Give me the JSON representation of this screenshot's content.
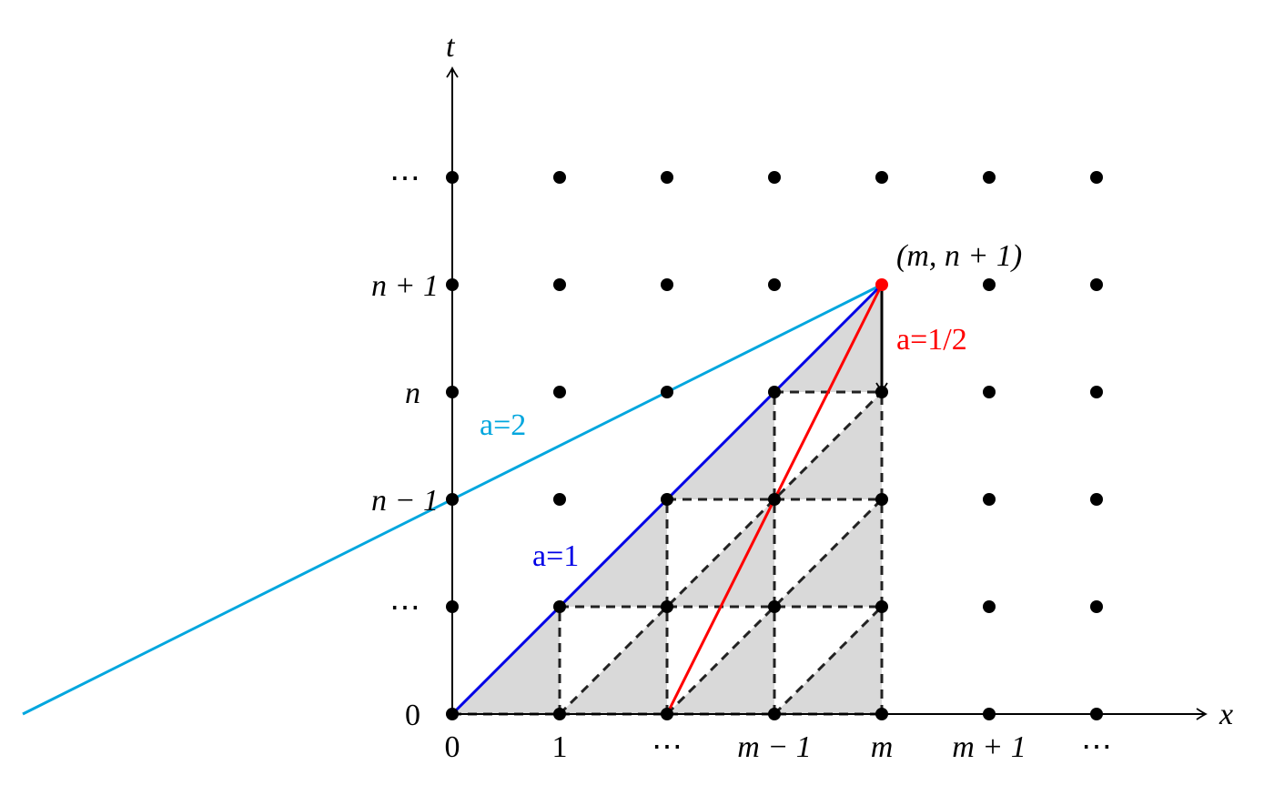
{
  "axes": {
    "x_name": "x",
    "t_name": "t",
    "x_labels": [
      "0",
      "1",
      "⋯",
      "m − 1",
      "m",
      "m + 1",
      "⋯"
    ],
    "t_labels": [
      "0",
      "⋯",
      "n − 1",
      "n",
      "n + 1",
      "⋯"
    ]
  },
  "point_label": "(m, n + 1)",
  "lines": [
    {
      "label": "a=2"
    },
    {
      "label": "a=1"
    },
    {
      "label": "a=1/2"
    }
  ]
}
